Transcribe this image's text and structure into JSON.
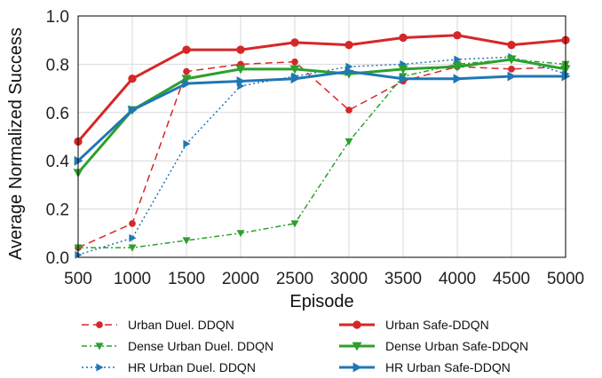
{
  "chart_data": {
    "type": "line",
    "xlabel": "Episode",
    "ylabel": "Average Normalized Success",
    "x": [
      500,
      1000,
      1500,
      2000,
      2500,
      3000,
      3500,
      4000,
      4500,
      5000
    ],
    "xticks": [
      "500",
      "1000",
      "1500",
      "2000",
      "2500",
      "3000",
      "3500",
      "4000",
      "4500",
      "5000"
    ],
    "yticks": [
      "0.0",
      "0.2",
      "0.4",
      "0.6",
      "0.8",
      "1.0"
    ],
    "xlim": [
      500,
      5000
    ],
    "ylim": [
      0,
      1.0
    ],
    "grid": true,
    "legend_position": "bottom",
    "series": [
      {
        "name": "Urban Duel. DDQN",
        "color": "#d62728",
        "style": "dashed",
        "marker": "circle",
        "values": [
          0.04,
          0.14,
          0.77,
          0.8,
          0.81,
          0.61,
          0.73,
          0.79,
          0.78,
          0.79
        ]
      },
      {
        "name": "Dense Urban Duel. DDQN",
        "color": "#2ca02c",
        "style": "dashdot",
        "marker": "triangle-down",
        "values": [
          0.04,
          0.04,
          0.07,
          0.1,
          0.14,
          0.48,
          0.75,
          0.8,
          0.82,
          0.8
        ]
      },
      {
        "name": "HR Urban Duel. DDQN",
        "color": "#1f77b4",
        "style": "dotted",
        "marker": "triangle-right",
        "values": [
          0.01,
          0.08,
          0.47,
          0.71,
          0.75,
          0.79,
          0.8,
          0.82,
          0.83,
          0.76
        ]
      },
      {
        "name": "Urban Safe-DDQN",
        "color": "#d62728",
        "style": "solid",
        "marker": "circle",
        "values": [
          0.48,
          0.74,
          0.86,
          0.86,
          0.89,
          0.88,
          0.91,
          0.92,
          0.88,
          0.9
        ]
      },
      {
        "name": "Dense Urban Safe-DDQN",
        "color": "#2ca02c",
        "style": "solid",
        "marker": "triangle-down",
        "values": [
          0.35,
          0.61,
          0.74,
          0.78,
          0.78,
          0.76,
          0.78,
          0.79,
          0.82,
          0.78
        ]
      },
      {
        "name": "HR Urban Safe-DDQN",
        "color": "#1f77b4",
        "style": "solid",
        "marker": "triangle-right",
        "values": [
          0.4,
          0.61,
          0.72,
          0.73,
          0.74,
          0.77,
          0.74,
          0.74,
          0.75,
          0.75
        ]
      }
    ]
  }
}
